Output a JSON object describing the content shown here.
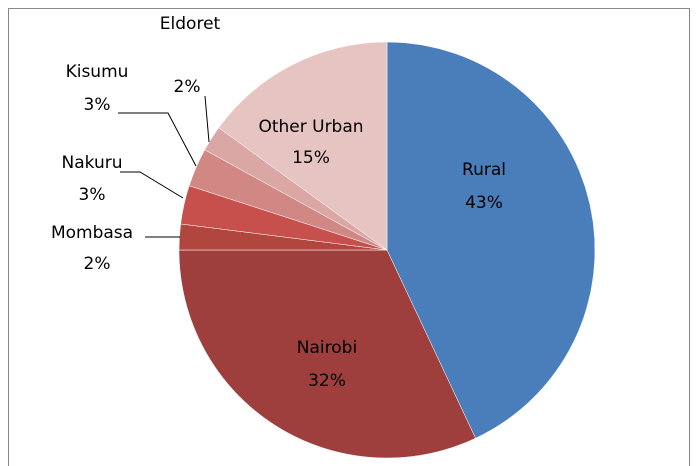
{
  "chart_data": {
    "type": "pie",
    "categories": [
      "Rural",
      "Nairobi",
      "Mombasa",
      "Nakuru",
      "Kisumu",
      "Eldoret",
      "Other Urban"
    ],
    "values": [
      43,
      32,
      2,
      3,
      3,
      2,
      15
    ],
    "value_labels": [
      "43%",
      "32%",
      "2%",
      "3%",
      "3%",
      "2%",
      "15%"
    ],
    "colors": [
      "#4a7ebb",
      "#9e3f3e",
      "#b1463f",
      "#c8504c",
      "#d18885",
      "#dba7a5",
      "#e6c4c2"
    ]
  }
}
